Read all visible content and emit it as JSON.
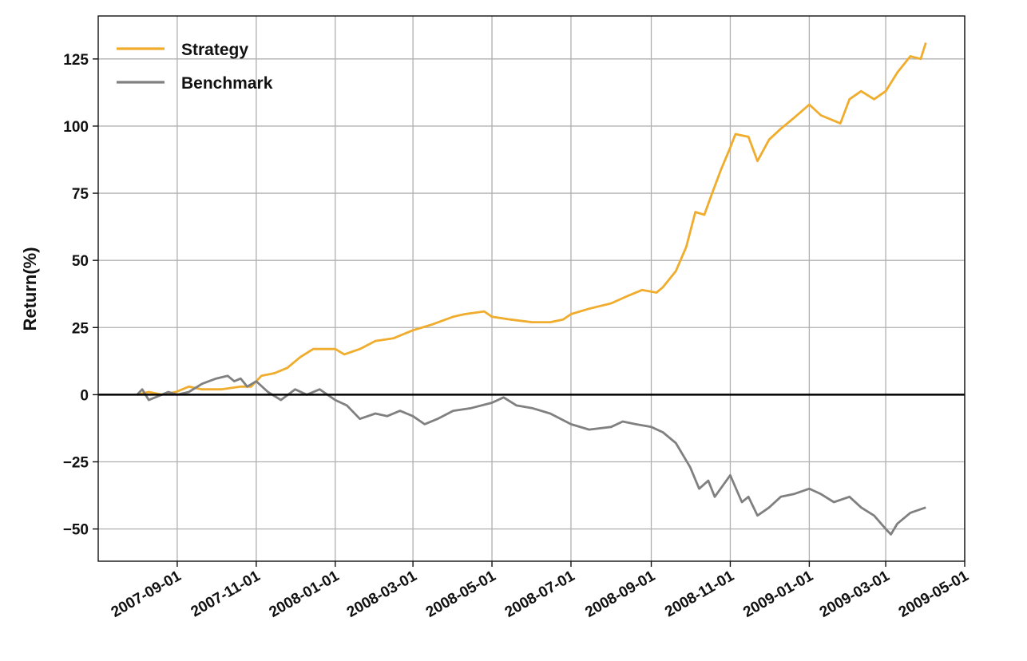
{
  "chart_data": {
    "type": "line",
    "ylabel": "Return(%)",
    "xlabel": "",
    "title": "",
    "xlim": [
      "2007-07-02",
      "2009-05-01"
    ],
    "ylim": [
      -62,
      141
    ],
    "grid": true,
    "legend_position": "top-left",
    "zero_line": true,
    "x_ticks": [
      "2007-09-01",
      "2007-11-01",
      "2008-01-01",
      "2008-03-01",
      "2008-05-01",
      "2008-07-01",
      "2008-09-01",
      "2008-11-01",
      "2009-01-01",
      "2009-03-01",
      "2009-05-01"
    ],
    "y_ticks": [
      125,
      100,
      75,
      50,
      25,
      0,
      -25,
      -50
    ],
    "y_tick_labels": [
      "125",
      "100",
      "75",
      "50",
      "25",
      "0",
      "−25",
      "−50"
    ],
    "series": [
      {
        "name": "Strategy",
        "color": "#f0ac2c",
        "points": [
          [
            "2007-08-01",
            0
          ],
          [
            "2007-08-10",
            1
          ],
          [
            "2007-08-20",
            0
          ],
          [
            "2007-08-31",
            1
          ],
          [
            "2007-09-10",
            3
          ],
          [
            "2007-09-20",
            2
          ],
          [
            "2007-10-05",
            2
          ],
          [
            "2007-10-20",
            3
          ],
          [
            "2007-10-28",
            3
          ],
          [
            "2007-11-05",
            7
          ],
          [
            "2007-11-15",
            8
          ],
          [
            "2007-11-25",
            10
          ],
          [
            "2007-12-05",
            14
          ],
          [
            "2007-12-15",
            17
          ],
          [
            "2007-12-25",
            17
          ],
          [
            "2008-01-01",
            17
          ],
          [
            "2008-01-08",
            15
          ],
          [
            "2008-01-20",
            17
          ],
          [
            "2008-02-01",
            20
          ],
          [
            "2008-02-15",
            21
          ],
          [
            "2008-03-01",
            24
          ],
          [
            "2008-03-15",
            26
          ],
          [
            "2008-04-01",
            29
          ],
          [
            "2008-04-10",
            30
          ],
          [
            "2008-04-25",
            31
          ],
          [
            "2008-05-01",
            29
          ],
          [
            "2008-05-15",
            28
          ],
          [
            "2008-06-01",
            27
          ],
          [
            "2008-06-15",
            27
          ],
          [
            "2008-06-25",
            28
          ],
          [
            "2008-07-01",
            30
          ],
          [
            "2008-07-15",
            32
          ],
          [
            "2008-08-01",
            34
          ],
          [
            "2008-08-15",
            37
          ],
          [
            "2008-08-25",
            39
          ],
          [
            "2008-09-05",
            38
          ],
          [
            "2008-09-10",
            40
          ],
          [
            "2008-09-20",
            46
          ],
          [
            "2008-09-28",
            55
          ],
          [
            "2008-10-05",
            68
          ],
          [
            "2008-10-12",
            67
          ],
          [
            "2008-10-18",
            75
          ],
          [
            "2008-10-25",
            84
          ],
          [
            "2008-11-01",
            92
          ],
          [
            "2008-11-05",
            97
          ],
          [
            "2008-11-15",
            96
          ],
          [
            "2008-11-22",
            87
          ],
          [
            "2008-12-01",
            95
          ],
          [
            "2008-12-10",
            99
          ],
          [
            "2008-12-20",
            103
          ],
          [
            "2009-01-01",
            108
          ],
          [
            "2009-01-10",
            104
          ],
          [
            "2009-01-20",
            102
          ],
          [
            "2009-01-25",
            101
          ],
          [
            "2009-02-01",
            110
          ],
          [
            "2009-02-10",
            113
          ],
          [
            "2009-02-20",
            110
          ],
          [
            "2009-03-01",
            113
          ],
          [
            "2009-03-10",
            120
          ],
          [
            "2009-03-20",
            126
          ],
          [
            "2009-03-28",
            125
          ],
          [
            "2009-04-01",
            131
          ]
        ]
      },
      {
        "name": "Benchmark",
        "color": "#808080",
        "points": [
          [
            "2007-08-01",
            0
          ],
          [
            "2007-08-05",
            2
          ],
          [
            "2007-08-10",
            -2
          ],
          [
            "2007-08-15",
            -1
          ],
          [
            "2007-08-20",
            0
          ],
          [
            "2007-08-25",
            1
          ],
          [
            "2007-09-01",
            0
          ],
          [
            "2007-09-10",
            1
          ],
          [
            "2007-09-20",
            4
          ],
          [
            "2007-10-01",
            6
          ],
          [
            "2007-10-10",
            7
          ],
          [
            "2007-10-15",
            5
          ],
          [
            "2007-10-20",
            6
          ],
          [
            "2007-10-25",
            3
          ],
          [
            "2007-11-01",
            5
          ],
          [
            "2007-11-10",
            1
          ],
          [
            "2007-11-20",
            -2
          ],
          [
            "2007-12-01",
            2
          ],
          [
            "2007-12-10",
            0
          ],
          [
            "2007-12-20",
            2
          ],
          [
            "2008-01-01",
            -2
          ],
          [
            "2008-01-10",
            -4
          ],
          [
            "2008-01-20",
            -9
          ],
          [
            "2008-02-01",
            -7
          ],
          [
            "2008-02-10",
            -8
          ],
          [
            "2008-02-20",
            -6
          ],
          [
            "2008-03-01",
            -8
          ],
          [
            "2008-03-10",
            -11
          ],
          [
            "2008-03-20",
            -9
          ],
          [
            "2008-04-01",
            -6
          ],
          [
            "2008-04-15",
            -5
          ],
          [
            "2008-05-01",
            -3
          ],
          [
            "2008-05-10",
            -1
          ],
          [
            "2008-05-20",
            -4
          ],
          [
            "2008-06-01",
            -5
          ],
          [
            "2008-06-15",
            -7
          ],
          [
            "2008-07-01",
            -11
          ],
          [
            "2008-07-15",
            -13
          ],
          [
            "2008-08-01",
            -12
          ],
          [
            "2008-08-10",
            -10
          ],
          [
            "2008-08-20",
            -11
          ],
          [
            "2008-09-01",
            -12
          ],
          [
            "2008-09-10",
            -14
          ],
          [
            "2008-09-20",
            -18
          ],
          [
            "2008-10-01",
            -27
          ],
          [
            "2008-10-08",
            -35
          ],
          [
            "2008-10-15",
            -32
          ],
          [
            "2008-10-20",
            -38
          ],
          [
            "2008-11-01",
            -30
          ],
          [
            "2008-11-10",
            -40
          ],
          [
            "2008-11-15",
            -38
          ],
          [
            "2008-11-22",
            -45
          ],
          [
            "2008-12-01",
            -42
          ],
          [
            "2008-12-10",
            -38
          ],
          [
            "2008-12-20",
            -37
          ],
          [
            "2009-01-01",
            -35
          ],
          [
            "2009-01-10",
            -37
          ],
          [
            "2009-01-20",
            -40
          ],
          [
            "2009-02-01",
            -38
          ],
          [
            "2009-02-10",
            -42
          ],
          [
            "2009-02-20",
            -45
          ],
          [
            "2009-03-01",
            -50
          ],
          [
            "2009-03-05",
            -52
          ],
          [
            "2009-03-10",
            -48
          ],
          [
            "2009-03-20",
            -44
          ],
          [
            "2009-04-01",
            -42
          ]
        ]
      }
    ]
  }
}
